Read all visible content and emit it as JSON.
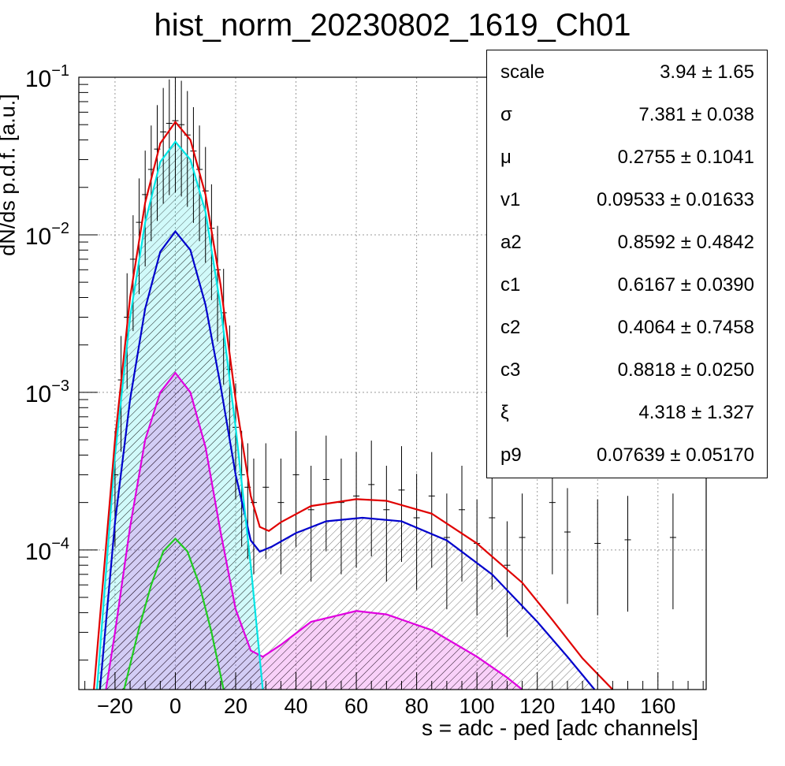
{
  "title": "hist_norm_20230802_1619_Ch01",
  "chart_data": {
    "type": "line",
    "title": "hist_norm_20230802_1619_Ch01",
    "xlabel": "s = adc - ped [adc channels]",
    "ylabel": "dN/ds p.d.f. [a.u.]",
    "xlim": [
      -32,
      176
    ],
    "ylim": [
      1.3e-05,
      0.1
    ],
    "yscale": "log",
    "grid": true,
    "x_ticks": [
      "−20",
      "0",
      "20",
      "40",
      "60",
      "80",
      "100",
      "120",
      "140",
      "160"
    ],
    "x_tick_values": [
      -20,
      0,
      20,
      40,
      60,
      80,
      100,
      120,
      140,
      160
    ],
    "y_ticks": [
      {
        "base": "10",
        "exp": "−1",
        "value": 0.1
      },
      {
        "base": "10",
        "exp": "−2",
        "value": 0.01
      },
      {
        "base": "10",
        "exp": "−3",
        "value": 0.001
      },
      {
        "base": "10",
        "exp": "−4",
        "value": 0.0001
      }
    ],
    "series": [
      {
        "color": "#e00000",
        "hatch": false,
        "points": [
          [
            -27,
            1.3e-05
          ],
          [
            -20,
            0.0005
          ],
          [
            -15,
            0.004
          ],
          [
            -10,
            0.016
          ],
          [
            -5,
            0.038
          ],
          [
            0,
            0.052
          ],
          [
            5,
            0.04
          ],
          [
            10,
            0.018
          ],
          [
            15,
            0.0048
          ],
          [
            20,
            0.0009
          ],
          [
            25,
            0.00022
          ],
          [
            28,
            0.00014
          ],
          [
            31,
            0.000132
          ],
          [
            35,
            0.00015
          ],
          [
            45,
            0.00019
          ],
          [
            60,
            0.00021
          ],
          [
            70,
            0.000205
          ],
          [
            85,
            0.00017
          ],
          [
            100,
            0.00011
          ],
          [
            115,
            6.2e-05
          ],
          [
            125,
            3.6e-05
          ],
          [
            135,
            2.05e-05
          ],
          [
            145,
            1.3e-05
          ]
        ]
      },
      {
        "color": "#00e5e5",
        "hatch": true,
        "points": [
          [
            -26,
            1.3e-05
          ],
          [
            -20,
            0.0004
          ],
          [
            -15,
            0.003
          ],
          [
            -10,
            0.012
          ],
          [
            -5,
            0.029
          ],
          [
            0,
            0.039
          ],
          [
            5,
            0.03
          ],
          [
            10,
            0.014
          ],
          [
            15,
            0.0035
          ],
          [
            20,
            0.0006
          ],
          [
            25,
            8e-05
          ],
          [
            29,
            1.3e-05
          ]
        ]
      },
      {
        "color": "#0000cc",
        "hatch": true,
        "points": [
          [
            -25,
            1.3e-05
          ],
          [
            -20,
            0.00015
          ],
          [
            -15,
            0.0009
          ],
          [
            -10,
            0.0034
          ],
          [
            -5,
            0.0078
          ],
          [
            0,
            0.0105
          ],
          [
            5,
            0.008
          ],
          [
            10,
            0.0036
          ],
          [
            15,
            0.0011
          ],
          [
            20,
            0.0003
          ],
          [
            25,
            0.000115
          ],
          [
            28,
            9.75e-05
          ],
          [
            32,
            0.000105
          ],
          [
            40,
            0.000128
          ],
          [
            50,
            0.000152
          ],
          [
            62,
            0.00016
          ],
          [
            75,
            0.000152
          ],
          [
            90,
            0.000115
          ],
          [
            105,
            7e-05
          ],
          [
            120,
            3.5e-05
          ],
          [
            130,
            2.1e-05
          ],
          [
            139,
            1.3e-05
          ]
        ]
      },
      {
        "color": "#e000e0",
        "hatch": true,
        "points": [
          [
            -23,
            1.3e-05
          ],
          [
            -20,
            3e-05
          ],
          [
            -15,
            0.00014
          ],
          [
            -10,
            0.0005
          ],
          [
            -5,
            0.001
          ],
          [
            0,
            0.00133
          ],
          [
            5,
            0.001
          ],
          [
            10,
            0.00045
          ],
          [
            15,
            0.00013
          ],
          [
            20,
            4.2e-05
          ],
          [
            25,
            2.3e-05
          ],
          [
            29,
            2.1e-05
          ],
          [
            35,
            2.5e-05
          ],
          [
            45,
            3.5e-05
          ],
          [
            60,
            4.1e-05
          ],
          [
            70,
            3.9e-05
          ],
          [
            85,
            3.1e-05
          ],
          [
            100,
            2.1e-05
          ],
          [
            110,
            1.55e-05
          ],
          [
            115,
            1.3e-05
          ]
        ]
      },
      {
        "color": "#20cc20",
        "hatch": false,
        "points": [
          [
            -17,
            1.3e-05
          ],
          [
            -12,
            3.2e-05
          ],
          [
            -8,
            6e-05
          ],
          [
            -4,
            9.8e-05
          ],
          [
            0,
            0.000118
          ],
          [
            4,
            9.8e-05
          ],
          [
            8,
            6e-05
          ],
          [
            12,
            3e-05
          ],
          [
            16,
            1.3e-05
          ]
        ]
      }
    ],
    "data_points": [
      [
        -20,
        0.0003
      ],
      [
        -18,
        0.0012
      ],
      [
        -16,
        0.003
      ],
      [
        -14,
        0.007
      ],
      [
        -12,
        0.012
      ],
      [
        -10,
        0.018
      ],
      [
        -8,
        0.026
      ],
      [
        -6,
        0.035
      ],
      [
        -4,
        0.045
      ],
      [
        -2,
        0.051
      ],
      [
        0,
        0.053
      ],
      [
        2,
        0.05
      ],
      [
        4,
        0.043
      ],
      [
        6,
        0.034
      ],
      [
        8,
        0.026
      ],
      [
        10,
        0.019
      ],
      [
        12,
        0.011
      ],
      [
        14,
        0.006
      ],
      [
        16,
        0.0032
      ],
      [
        18,
        0.0014
      ],
      [
        20,
        0.0006
      ],
      [
        22,
        0.0003
      ],
      [
        24,
        0.00025
      ],
      [
        26,
        0.0002
      ],
      [
        30,
        0.00025
      ],
      [
        35,
        0.0002
      ],
      [
        40,
        0.0003
      ],
      [
        45,
        0.00018
      ],
      [
        50,
        0.00028
      ],
      [
        55,
        0.0002
      ],
      [
        60,
        0.00022
      ],
      [
        65,
        0.00026
      ],
      [
        70,
        0.00018
      ],
      [
        75,
        0.00024
      ],
      [
        80,
        0.00016
      ],
      [
        85,
        0.00022
      ],
      [
        90,
        0.00012
      ],
      [
        95,
        0.00018
      ],
      [
        100,
        0.00011
      ],
      [
        105,
        0.00016
      ],
      [
        110,
        8e-05
      ],
      [
        115,
        0.00012
      ],
      [
        125,
        0.0002
      ],
      [
        130,
        0.00013
      ],
      [
        140,
        0.00011
      ],
      [
        150,
        0.000116
      ],
      [
        165,
        0.00012
      ]
    ],
    "legend_position": "top-right",
    "stats_box": [
      {
        "name": "scale",
        "value": "3.94 ± 1.65"
      },
      {
        "name": "σ",
        "value": "7.381 ± 0.038"
      },
      {
        "name": "μ",
        "value": "0.2755 ± 0.1041"
      },
      {
        "name": "v1",
        "value": "0.09533 ± 0.01633"
      },
      {
        "name": "a2",
        "value": "0.8592 ± 0.4842"
      },
      {
        "name": "c1",
        "value": "0.6167 ± 0.0390"
      },
      {
        "name": "c2",
        "value": "0.4064 ± 0.7458"
      },
      {
        "name": "c3",
        "value": "0.8818 ± 0.0250"
      },
      {
        "name": "ξ",
        "value": "4.318 ± 1.327"
      },
      {
        "name": "p9",
        "value": "0.07639 ± 0.05170"
      }
    ]
  }
}
